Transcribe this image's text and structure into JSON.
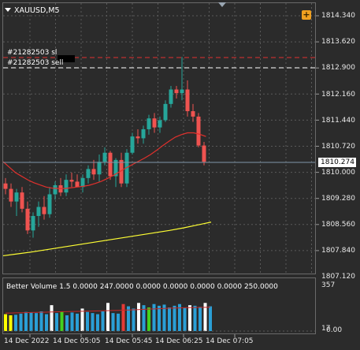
{
  "chart": {
    "symbol": "XAUUSD,M5",
    "plus_label": "+",
    "orders": {
      "sl_label": "#21282503 sl",
      "sell_label": "#21282503 sell"
    },
    "price_axis": [
      "1814.340",
      "1813.620",
      "1812.900",
      "1812.160",
      "1811.440",
      "1810.720",
      "1810.000",
      "1809.280",
      "1808.560",
      "1807.840",
      "1807.120"
    ],
    "current_price": "1810.274",
    "time_axis": [
      "14 Dec 2022",
      "14 Dec 05:05",
      "14 Dec 05:45",
      "14 Dec 06:25",
      "14 Dec 07:05"
    ],
    "colors": {
      "background": "#2b2b2b",
      "bull": "#26a69a",
      "bear": "#ef5350",
      "ma_short": "#e0302c",
      "ma_long": "#ffff33",
      "sl_line": "#e03030",
      "sell_line": "#ffffff",
      "volume_blue": "#2a9fd6",
      "volume_white": "#ffffff",
      "volume_red": "#e53935",
      "volume_green": "#43d11e",
      "volume_yellow": "#ffff00"
    },
    "candles": [
      {
        "o": 1809.7,
        "h": 1809.85,
        "l": 1809.4,
        "c": 1809.55
      },
      {
        "o": 1809.55,
        "h": 1809.7,
        "l": 1809.05,
        "c": 1809.2
      },
      {
        "o": 1809.2,
        "h": 1809.55,
        "l": 1808.8,
        "c": 1809.45
      },
      {
        "o": 1809.45,
        "h": 1809.6,
        "l": 1808.9,
        "c": 1809.0
      },
      {
        "o": 1809.0,
        "h": 1809.2,
        "l": 1808.3,
        "c": 1808.4
      },
      {
        "o": 1808.4,
        "h": 1808.9,
        "l": 1808.2,
        "c": 1808.8
      },
      {
        "o": 1808.8,
        "h": 1809.2,
        "l": 1808.5,
        "c": 1809.05
      },
      {
        "o": 1809.05,
        "h": 1809.35,
        "l": 1808.7,
        "c": 1808.85
      },
      {
        "o": 1808.85,
        "h": 1809.6,
        "l": 1808.75,
        "c": 1809.4
      },
      {
        "o": 1809.4,
        "h": 1809.75,
        "l": 1809.25,
        "c": 1809.65
      },
      {
        "o": 1809.65,
        "h": 1809.85,
        "l": 1809.35,
        "c": 1809.45
      },
      {
        "o": 1809.45,
        "h": 1809.95,
        "l": 1809.35,
        "c": 1809.8
      },
      {
        "o": 1809.8,
        "h": 1810.0,
        "l": 1809.6,
        "c": 1809.75
      },
      {
        "o": 1809.75,
        "h": 1809.95,
        "l": 1809.6,
        "c": 1809.6
      },
      {
        "o": 1809.6,
        "h": 1809.95,
        "l": 1809.45,
        "c": 1809.85
      },
      {
        "o": 1809.85,
        "h": 1810.2,
        "l": 1809.7,
        "c": 1810.1
      },
      {
        "o": 1810.1,
        "h": 1810.35,
        "l": 1809.8,
        "c": 1809.95
      },
      {
        "o": 1809.95,
        "h": 1810.5,
        "l": 1809.75,
        "c": 1810.3
      },
      {
        "o": 1810.3,
        "h": 1810.7,
        "l": 1810.2,
        "c": 1810.55
      },
      {
        "o": 1810.55,
        "h": 1810.6,
        "l": 1809.8,
        "c": 1809.9
      },
      {
        "o": 1809.9,
        "h": 1810.4,
        "l": 1809.6,
        "c": 1810.35
      },
      {
        "o": 1810.35,
        "h": 1810.55,
        "l": 1809.6,
        "c": 1809.7
      },
      {
        "o": 1809.7,
        "h": 1810.65,
        "l": 1809.6,
        "c": 1810.55
      },
      {
        "o": 1810.55,
        "h": 1811.1,
        "l": 1810.5,
        "c": 1811.0
      },
      {
        "o": 1811.0,
        "h": 1811.2,
        "l": 1810.8,
        "c": 1810.95
      },
      {
        "o": 1810.95,
        "h": 1811.3,
        "l": 1810.8,
        "c": 1811.2
      },
      {
        "o": 1811.2,
        "h": 1811.6,
        "l": 1811.05,
        "c": 1811.5
      },
      {
        "o": 1811.5,
        "h": 1811.65,
        "l": 1811.1,
        "c": 1811.25
      },
      {
        "o": 1811.25,
        "h": 1811.55,
        "l": 1811.1,
        "c": 1811.45
      },
      {
        "o": 1811.45,
        "h": 1812.0,
        "l": 1811.4,
        "c": 1811.9
      },
      {
        "o": 1811.9,
        "h": 1812.4,
        "l": 1811.8,
        "c": 1812.3
      },
      {
        "o": 1812.3,
        "h": 1812.4,
        "l": 1812.05,
        "c": 1812.2
      },
      {
        "o": 1812.2,
        "h": 1813.2,
        "l": 1812.0,
        "c": 1812.3
      },
      {
        "o": 1812.3,
        "h": 1812.55,
        "l": 1811.55,
        "c": 1811.7
      },
      {
        "o": 1811.7,
        "h": 1811.9,
        "l": 1811.4,
        "c": 1811.55
      },
      {
        "o": 1811.55,
        "h": 1811.65,
        "l": 1810.7,
        "c": 1810.75
      },
      {
        "o": 1810.75,
        "h": 1810.85,
        "l": 1810.2,
        "c": 1810.3
      }
    ],
    "ma_short": [
      1810.3,
      1810.15,
      1810.0,
      1809.9,
      1809.8,
      1809.72,
      1809.66,
      1809.6,
      1809.57,
      1809.56,
      1809.56,
      1809.58,
      1809.6,
      1809.62,
      1809.65,
      1809.7,
      1809.76,
      1809.84,
      1809.93,
      1810.03,
      1810.13,
      1810.22,
      1810.31,
      1810.4,
      1810.5,
      1810.62,
      1810.75,
      1810.87,
      1810.98,
      1811.05,
      1811.1,
      1811.1,
      1811.06,
      1811.0
    ],
    "ma_long": [
      1807.7,
      1807.75,
      1807.8,
      1807.86,
      1807.92,
      1807.98,
      1808.04,
      1808.1,
      1808.16,
      1808.22,
      1808.28,
      1808.34,
      1808.4,
      1808.47,
      1808.55,
      1808.63
    ],
    "volume": {
      "label": "Better Volume 1.5 0.0000 247.0000 0.0000 0.0000 0.0000 0.0000 250.0000",
      "scale_top": "357",
      "scale_bottom": "0.00",
      "scale_mid": "17",
      "max": 357,
      "bars": [
        {
          "v": 150,
          "c": "yellow"
        },
        {
          "v": 140,
          "c": "yellow"
        },
        {
          "v": 145,
          "c": "blue"
        },
        {
          "v": 155,
          "c": "blue"
        },
        {
          "v": 170,
          "c": "blue"
        },
        {
          "v": 165,
          "c": "blue"
        },
        {
          "v": 160,
          "c": "blue"
        },
        {
          "v": 175,
          "c": "blue"
        },
        {
          "v": 150,
          "c": "blue"
        },
        {
          "v": 230,
          "c": "white"
        },
        {
          "v": 160,
          "c": "blue"
        },
        {
          "v": 175,
          "c": "green"
        },
        {
          "v": 140,
          "c": "blue"
        },
        {
          "v": 165,
          "c": "blue"
        },
        {
          "v": 155,
          "c": "blue"
        },
        {
          "v": 200,
          "c": "white"
        },
        {
          "v": 170,
          "c": "blue"
        },
        {
          "v": 160,
          "c": "blue"
        },
        {
          "v": 150,
          "c": "blue"
        },
        {
          "v": 175,
          "c": "blue"
        },
        {
          "v": 250,
          "c": "white"
        },
        {
          "v": 160,
          "c": "blue"
        },
        {
          "v": 155,
          "c": "blue"
        },
        {
          "v": 240,
          "c": "red"
        },
        {
          "v": 220,
          "c": "blue"
        },
        {
          "v": 200,
          "c": "blue"
        },
        {
          "v": 250,
          "c": "white"
        },
        {
          "v": 230,
          "c": "blue"
        },
        {
          "v": 210,
          "c": "green"
        },
        {
          "v": 240,
          "c": "blue"
        },
        {
          "v": 225,
          "c": "blue"
        },
        {
          "v": 235,
          "c": "blue"
        },
        {
          "v": 210,
          "c": "blue"
        },
        {
          "v": 225,
          "c": "blue"
        },
        {
          "v": 240,
          "c": "blue"
        },
        {
          "v": 210,
          "c": "blue"
        },
        {
          "v": 230,
          "c": "white"
        },
        {
          "v": 225,
          "c": "blue"
        },
        {
          "v": 215,
          "c": "blue"
        },
        {
          "v": 250,
          "c": "white"
        },
        {
          "v": 220,
          "c": "blue"
        }
      ],
      "avg": [
        160,
        160,
        162,
        163,
        164,
        165,
        166,
        167,
        168,
        170,
        171,
        172,
        173,
        174,
        175,
        176,
        177,
        178,
        179,
        180,
        181,
        183,
        184,
        186,
        187,
        189,
        191,
        193,
        195,
        197,
        199,
        201,
        203,
        205,
        206,
        207,
        208,
        209,
        210,
        211,
        212
      ]
    }
  }
}
